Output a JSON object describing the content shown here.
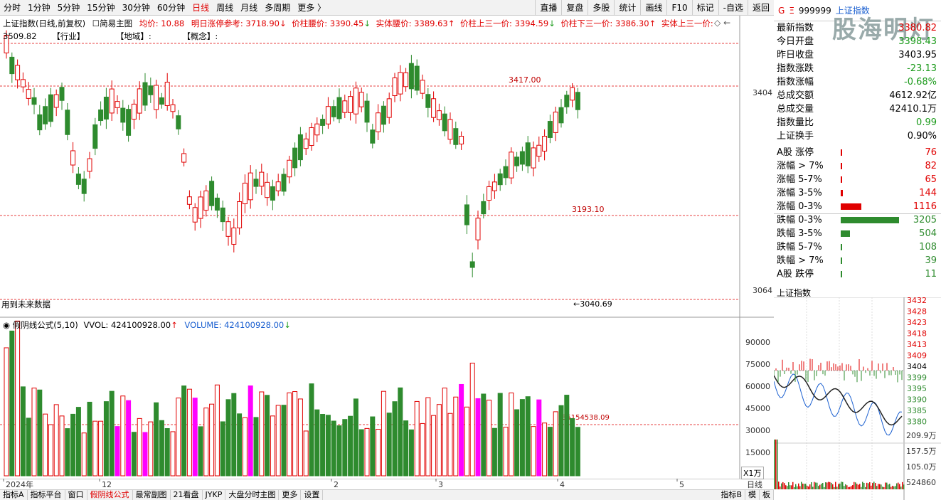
{
  "toolbar": {
    "periods": [
      "分时",
      "1分钟",
      "5分钟",
      "15分钟",
      "30分钟",
      "60分钟",
      "日线",
      "周线",
      "月线",
      "多周期",
      "更多 〉"
    ],
    "active_index": 6,
    "right": [
      "直播",
      "复盘",
      "多股",
      "统计",
      "画线",
      "F10",
      "标记",
      "-自选",
      "返回"
    ]
  },
  "info_bar": {
    "title": "上证指数(日线,前复权)",
    "main_chart": "简易主图",
    "avg": "均价: 10.88",
    "limit_ref": "明日涨停参考: 3718.90",
    "waist": "价柱腰价: 3390.45",
    "body_waist": "实体腰价: 3389.63",
    "upper_third": "价柱上三一价: 3394.59",
    "lower_third": "价柱下三一价: 3386.30",
    "body_upper": "实体上三一价:"
  },
  "tags": {
    "industry": "【行业】",
    "region": "【地域】:",
    "concept": "【概念】:",
    "value": "3509.82"
  },
  "price_axis": [
    "3404",
    "3064"
  ],
  "annotations": {
    "high": "3417.00",
    "mid": "3193.10",
    "low": "3040.69",
    "future": "用到未来数据"
  },
  "volume": {
    "title": "假阴线公式(5,10)",
    "vvol": "VVOL: 424100928.00",
    "volume": "VOLUME: 424100928.00",
    "axis": [
      "90000",
      "75000",
      "60000",
      "45000",
      "30000",
      "15000"
    ],
    "unit": "X1万",
    "marker": "35154538.09"
  },
  "xaxis": [
    "2024年",
    "12",
    "2",
    "3",
    "4",
    "5"
  ],
  "xaxis_right": "日线",
  "stock": {
    "code": "999999",
    "name": "上证指数",
    "g": "G",
    "e": "Ξ"
  },
  "watermark": "股海明灯",
  "stats": [
    {
      "label": "最新指数",
      "value": "3380.82",
      "color": "red"
    },
    {
      "label": "今日开盘",
      "value": "3398.43",
      "color": "green"
    },
    {
      "label": "昨日收盘",
      "value": "3403.95",
      "color": "black"
    },
    {
      "label": "指数涨跌",
      "value": "-23.13",
      "color": "green"
    },
    {
      "label": "指数涨幅",
      "value": "-0.68%",
      "color": "green"
    },
    {
      "label": "总成交额",
      "value": "4612.92亿",
      "color": "black"
    },
    {
      "label": "总成交量",
      "value": "42410.1万",
      "color": "black"
    },
    {
      "label": "指数量比",
      "value": "0.99",
      "color": "green"
    },
    {
      "label": "上证换手",
      "value": "0.90%",
      "color": "black"
    }
  ],
  "distribution": [
    {
      "label": "A股 涨停",
      "value": "76",
      "pct": 0.02,
      "color": "#e00000"
    },
    {
      "label": "涨幅 > 7%",
      "value": "82",
      "pct": 0.02,
      "color": "#e00000"
    },
    {
      "label": "涨幅 5-7%",
      "value": "65",
      "pct": 0.02,
      "color": "#e00000"
    },
    {
      "label": "涨幅 3-5%",
      "value": "144",
      "pct": 0.04,
      "color": "#e00000"
    },
    {
      "label": "涨幅 0-3%",
      "value": "1116",
      "pct": 0.35,
      "color": "#e00000"
    },
    {
      "label": "跌幅 0-3%",
      "value": "3205",
      "pct": 1.0,
      "color": "#2e8b2e"
    },
    {
      "label": "跌幅 3-5%",
      "value": "504",
      "pct": 0.16,
      "color": "#2e8b2e"
    },
    {
      "label": "跌幅 5-7%",
      "value": "108",
      "pct": 0.03,
      "color": "#2e8b2e"
    },
    {
      "label": "跌幅 > 7%",
      "value": "39",
      "pct": 0.01,
      "color": "#2e8b2e"
    },
    {
      "label": "A股 跌停",
      "value": "11",
      "pct": 0.005,
      "color": "#2e8b2e"
    }
  ],
  "mini": {
    "title": "上证指数",
    "prices": [
      "3432",
      "3428",
      "3423",
      "3418",
      "3413",
      "3409",
      "3404",
      "3399",
      "3395",
      "3390",
      "3385",
      "3380"
    ],
    "vols": [
      "209.9万",
      "157.5万",
      "105.0万",
      "524860"
    ]
  },
  "bottom_tabs": [
    "指标A",
    "指标平台",
    "窗口",
    "假阴线公式",
    "最常副图",
    "21看盘",
    "JYKP",
    "大盘分时主图",
    "更多",
    "设置"
  ],
  "bottom_active": 3,
  "bottom_right": [
    "指标B",
    "模",
    "板"
  ]
}
